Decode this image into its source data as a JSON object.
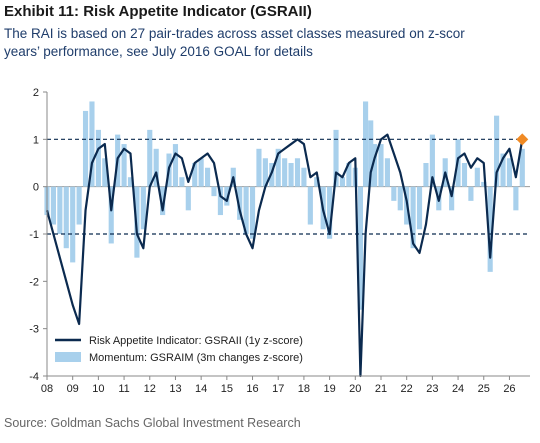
{
  "chart_data": {
    "type": "line",
    "title": "Exhibit 11: Risk Appetite Indicator (GSRAII)",
    "subtitle_lines": [
      "The RAI is based on 27 pair-trades across asset classes measured on z-scor",
      "years’ performance, see July 2016 GOAL for details"
    ],
    "source": "Source: Goldman Sachs Global Investment Research",
    "x": [
      2008.0,
      2008.25,
      2008.5,
      2008.75,
      2009.0,
      2009.25,
      2009.5,
      2009.75,
      2010.0,
      2010.25,
      2010.5,
      2010.75,
      2011.0,
      2011.25,
      2011.5,
      2011.75,
      2012.0,
      2012.25,
      2012.5,
      2012.75,
      2013.0,
      2013.25,
      2013.5,
      2013.75,
      2014.0,
      2014.25,
      2014.5,
      2014.75,
      2015.0,
      2015.25,
      2015.5,
      2015.75,
      2016.0,
      2016.25,
      2016.5,
      2016.75,
      2017.0,
      2017.25,
      2017.5,
      2017.75,
      2018.0,
      2018.25,
      2018.5,
      2018.75,
      2019.0,
      2019.25,
      2019.5,
      2019.75,
      2020.0,
      2020.2,
      2020.4,
      2020.6,
      2020.75,
      2021.0,
      2021.25,
      2021.5,
      2021.75,
      2022.0,
      2022.25,
      2022.5,
      2022.75,
      2023.0,
      2023.25,
      2023.5,
      2023.75,
      2024.0,
      2024.25,
      2024.5,
      2024.75,
      2025.0,
      2025.25,
      2025.5,
      2025.75,
      2026.0,
      2026.25,
      2026.5
    ],
    "series": [
      {
        "name": "Momentum: GSRAIM (3m changes z-score)",
        "type": "bar",
        "color": "#a8d0ec",
        "values": [
          -0.6,
          -0.8,
          -1.0,
          -1.3,
          -1.6,
          -0.8,
          1.6,
          1.8,
          1.2,
          0.6,
          -1.2,
          1.1,
          0.9,
          0.2,
          -1.5,
          -0.9,
          1.2,
          0.8,
          -0.6,
          0.7,
          0.9,
          0.2,
          -0.5,
          0.5,
          0.6,
          0.4,
          -0.2,
          -0.6,
          -0.4,
          0.4,
          -0.7,
          -1.0,
          -1.1,
          0.8,
          0.6,
          0.5,
          0.8,
          0.6,
          0.5,
          0.6,
          0.4,
          -0.8,
          0.2,
          -0.9,
          -1.1,
          1.2,
          0.2,
          0.5,
          0.4,
          -2.6,
          1.8,
          1.4,
          0.9,
          0.9,
          0.6,
          -0.3,
          -0.5,
          -0.8,
          -1.3,
          -0.9,
          0.5,
          1.1,
          -0.5,
          0.6,
          -0.5,
          1.0,
          0.5,
          -0.3,
          0.4,
          0.1,
          -1.8,
          1.5,
          0.7,
          0.6,
          -0.5,
          0.8
        ]
      },
      {
        "name": "Risk Appetite Indicator: GSRAII (1y z-score)",
        "type": "line",
        "color": "#0b2a4f",
        "values": [
          -0.5,
          -1.0,
          -1.5,
          -2.0,
          -2.5,
          -2.9,
          -0.5,
          0.5,
          0.8,
          0.9,
          -0.5,
          0.6,
          0.8,
          0.7,
          -1.0,
          -1.3,
          0.0,
          0.3,
          -0.5,
          0.4,
          0.7,
          0.6,
          0.1,
          0.5,
          0.6,
          0.7,
          0.5,
          -0.2,
          -0.3,
          0.2,
          -0.5,
          -1.0,
          -1.3,
          -0.5,
          0.0,
          0.3,
          0.7,
          0.8,
          0.9,
          1.0,
          0.9,
          0.2,
          0.3,
          -0.5,
          -1.0,
          0.3,
          0.2,
          0.5,
          0.6,
          -4.0,
          -1.0,
          0.3,
          0.6,
          1.0,
          1.1,
          0.7,
          0.3,
          -0.3,
          -1.2,
          -1.4,
          -0.8,
          0.2,
          -0.3,
          0.3,
          -0.2,
          0.6,
          0.7,
          0.4,
          0.6,
          0.5,
          -1.5,
          0.3,
          0.6,
          0.8,
          0.2,
          1.0
        ]
      }
    ],
    "highlight_last_color": "#f08a24",
    "reference_lines": [
      1,
      -1
    ],
    "xlim": [
      2008,
      2026.8
    ],
    "xticks": [
      {
        "value": 2008,
        "label": "08"
      },
      {
        "value": 2009,
        "label": "09"
      },
      {
        "value": 2010,
        "label": "10"
      },
      {
        "value": 2011,
        "label": "11"
      },
      {
        "value": 2012,
        "label": "12"
      },
      {
        "value": 2013,
        "label": "13"
      },
      {
        "value": 2014,
        "label": "14"
      },
      {
        "value": 2015,
        "label": "15"
      },
      {
        "value": 2016,
        "label": "16"
      },
      {
        "value": 2017,
        "label": "17"
      },
      {
        "value": 2018,
        "label": "18"
      },
      {
        "value": 2019,
        "label": "19"
      },
      {
        "value": 2020,
        "label": "20"
      },
      {
        "value": 2021,
        "label": "21"
      },
      {
        "value": 2022,
        "label": "22"
      },
      {
        "value": 2023,
        "label": "23"
      },
      {
        "value": 2024,
        "label": "24"
      },
      {
        "value": 2025,
        "label": "25"
      },
      {
        "value": 2026,
        "label": "26"
      }
    ],
    "ylim": [
      -4,
      2
    ],
    "yticks": [
      -4,
      -3,
      -2,
      -1,
      0,
      1,
      2
    ],
    "legend": "lower left"
  }
}
